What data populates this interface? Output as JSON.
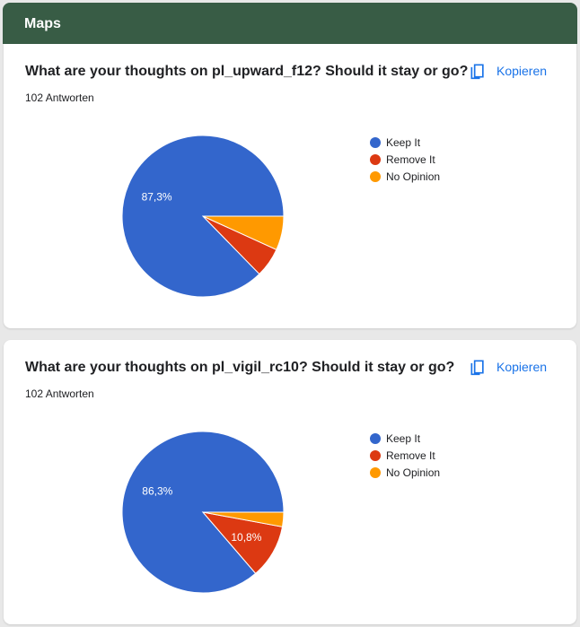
{
  "header": {
    "title": "Maps"
  },
  "copy_label": "Kopieren",
  "legend": [
    {
      "label": "Keep It",
      "color": "#3366cc"
    },
    {
      "label": "Remove It",
      "color": "#dc3912"
    },
    {
      "label": "No Opinion",
      "color": "#ff9900"
    }
  ],
  "questions": [
    {
      "title": "What are your thoughts on pl_upward_f12? Should it stay or go?",
      "responses": "102 Antworten"
    },
    {
      "title": "What are your thoughts on pl_vigil_rc10? Should it stay or go?",
      "responses": "102 Antworten"
    }
  ],
  "chart_data": [
    {
      "type": "pie",
      "categories": [
        "Keep It",
        "Remove It",
        "No Opinion"
      ],
      "values": [
        87.3,
        5.9,
        6.8
      ],
      "labels": [
        "87,3%",
        "",
        ""
      ],
      "colors": [
        "#3366cc",
        "#dc3912",
        "#ff9900"
      ],
      "legend": "right"
    },
    {
      "type": "pie",
      "categories": [
        "Keep It",
        "Remove It",
        "No Opinion"
      ],
      "values": [
        86.3,
        10.8,
        2.9
      ],
      "labels": [
        "86,3%",
        "10,8%",
        ""
      ],
      "colors": [
        "#3366cc",
        "#dc3912",
        "#ff9900"
      ],
      "legend": "right"
    }
  ]
}
